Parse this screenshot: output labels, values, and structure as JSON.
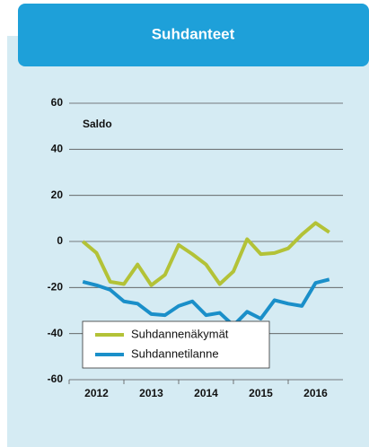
{
  "chart_data": {
    "type": "line",
    "title": "Suhdanteet",
    "ylabel": "Saldo",
    "x": [
      2012.25,
      2012.5,
      2012.75,
      2013,
      2013.25,
      2013.5,
      2013.75,
      2014,
      2014.25,
      2014.5,
      2014.75,
      2015,
      2015.25,
      2015.5,
      2015.75,
      2016,
      2016.25,
      2016.5,
      2016.75
    ],
    "series": [
      {
        "name": "Suhdannenäkymät",
        "color": "#b3c237",
        "values": [
          0,
          -5,
          -17.5,
          -18.5,
          -10,
          -19,
          -14.5,
          -1.5,
          -5.5,
          -10,
          -18.5,
          -13,
          1,
          -5.5,
          -5,
          -3,
          3,
          8,
          4
        ]
      },
      {
        "name": "Suhdannetilanne",
        "color": "#1a8fc9",
        "values": [
          -17.5,
          -19,
          -21,
          -26,
          -27,
          -31.5,
          -32,
          -28,
          -26,
          -32,
          -31,
          -36.5,
          -30.5,
          -33.5,
          -25.5,
          -27,
          -28,
          -18,
          -16.5
        ]
      }
    ],
    "xlim": [
      2012,
      2017
    ],
    "xticks": [
      2012,
      2013,
      2014,
      2015,
      2016
    ],
    "ylim": [
      -60,
      60
    ],
    "yticks": [
      -60,
      -40,
      -20,
      0,
      20,
      40,
      60
    ],
    "grid": true
  }
}
